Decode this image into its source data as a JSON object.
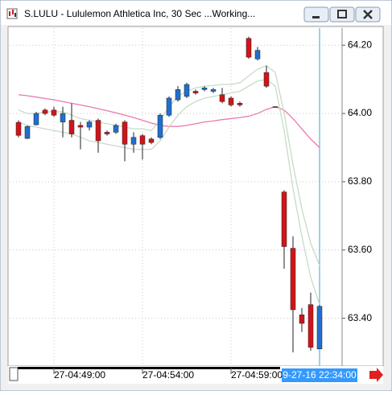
{
  "window_title": "S.LULU - Lululemon Athletica Inc, 30 Sec ...Working...",
  "chart_data": {
    "type": "candlestick",
    "categories": [
      null,
      null,
      null,
      null,
      "27-04:49:00",
      null,
      null,
      null,
      null,
      null,
      null,
      null,
      null,
      null,
      "27-04:54:00",
      null,
      null,
      null,
      null,
      null,
      null,
      null,
      null,
      null,
      "27-04:59:00",
      null,
      null,
      null,
      null,
      null,
      null,
      null,
      null,
      null,
      "9-27-16 22:34:00"
    ],
    "open": [
      63.974,
      63.927,
      63.967,
      64.01,
      64.01,
      63.975,
      63.98,
      63.965,
      63.96,
      63.98,
      63.945,
      63.945,
      63.975,
      63.91,
      63.935,
      63.925,
      63.93,
      63.995,
      64.04,
      64.05,
      64.065,
      64.07,
      64.065,
      64.055,
      64.045,
      64.03,
      64.22,
      64.16,
      64.12,
      64.02,
      63.77,
      63.605,
      63.41,
      63.44,
      63.31
    ],
    "high": [
      63.98,
      63.965,
      64.005,
      64.015,
      64.02,
      64.02,
      64.03,
      63.975,
      63.98,
      63.985,
      63.95,
      63.97,
      63.98,
      63.945,
      63.94,
      63.93,
      64.0,
      64.05,
      64.08,
      64.09,
      64.07,
      64.08,
      64.075,
      64.075,
      64.05,
      64.035,
      64.225,
      64.195,
      64.14,
      64.02,
      63.775,
      63.64,
      63.43,
      63.475,
      63.44
    ],
    "low": [
      63.93,
      63.925,
      63.965,
      63.995,
      63.99,
      63.93,
      63.93,
      63.895,
      63.95,
      63.885,
      63.935,
      63.94,
      63.86,
      63.885,
      63.865,
      63.91,
      63.925,
      63.99,
      64.035,
      64.045,
      64.055,
      64.065,
      64.06,
      64.03,
      64.02,
      64.02,
      64.16,
      64.155,
      64.075,
      64.017,
      63.545,
      63.3,
      63.36,
      63.305,
      63.31
    ],
    "close": [
      63.936,
      63.962,
      64.0,
      64.0,
      63.995,
      64.0,
      63.94,
      63.96,
      63.975,
      63.92,
      63.94,
      63.965,
      63.91,
      63.93,
      63.91,
      63.915,
      63.995,
      64.045,
      64.07,
      64.085,
      64.06,
      64.075,
      64.07,
      64.035,
      64.025,
      64.025,
      64.165,
      64.185,
      64.08,
      64.018,
      63.61,
      63.425,
      63.385,
      63.315,
      63.435
    ],
    "up_color": "#1f6fd0",
    "down_color": "#d0141a",
    "overlays": [
      {
        "color": "#e87ab0",
        "values": [
          64.055,
          64.052,
          64.048,
          64.044,
          64.04,
          64.035,
          64.03,
          64.025,
          64.02,
          64.014,
          64.008,
          64.002,
          63.995,
          63.988,
          63.98,
          63.972,
          63.965,
          63.962,
          63.962,
          63.965,
          63.97,
          63.975,
          63.978,
          63.982,
          63.985,
          63.988,
          63.992,
          64.0,
          64.012,
          64.02,
          64.01,
          63.985,
          63.955,
          63.925,
          63.9
        ]
      },
      {
        "color": "#c6dcc6",
        "values": [
          64.01,
          64.0,
          64.0,
          64.005,
          64.005,
          64.005,
          63.995,
          63.985,
          63.98,
          63.975,
          63.97,
          63.965,
          63.96,
          63.955,
          63.955,
          63.95,
          63.98,
          64.02,
          64.05,
          64.065,
          64.075,
          64.08,
          64.082,
          64.085,
          64.085,
          64.09,
          64.11,
          64.13,
          64.14,
          64.12,
          64.0,
          63.85,
          63.72,
          63.62,
          63.555
        ]
      },
      {
        "color": "#c6dcc6",
        "values": [
          63.975,
          63.965,
          63.96,
          63.955,
          63.95,
          63.945,
          63.94,
          63.93,
          63.92,
          63.915,
          63.91,
          63.905,
          63.9,
          63.895,
          63.895,
          63.895,
          63.92,
          63.96,
          63.995,
          64.02,
          64.035,
          64.045,
          64.05,
          64.055,
          64.06,
          64.065,
          64.08,
          64.095,
          64.1,
          64.08,
          63.95,
          63.78,
          63.64,
          63.52,
          63.44
        ]
      }
    ],
    "ylim": [
      63.26,
      64.25
    ],
    "yticks": [
      {
        "value": 63.4,
        "label": "63.40"
      },
      {
        "value": 63.6,
        "label": "63.60"
      },
      {
        "value": 63.8,
        "label": "63.80"
      },
      {
        "value": 64.0,
        "label": "64.00"
      },
      {
        "value": 64.2,
        "label": "64.20"
      }
    ],
    "grid": true
  }
}
